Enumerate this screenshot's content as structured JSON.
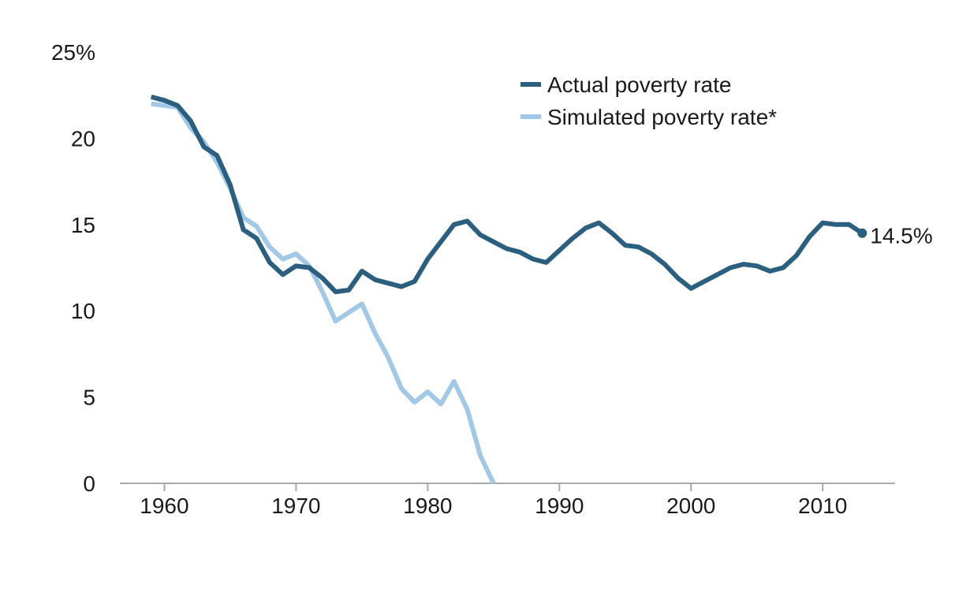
{
  "chart_data": {
    "type": "line",
    "title": "",
    "xlabel": "",
    "ylabel": "",
    "xlim": [
      1956.5,
      2015.5
    ],
    "ylim": [
      0,
      25
    ],
    "x_ticks": [
      {
        "value": 1960,
        "label": "1960"
      },
      {
        "value": 1970,
        "label": "1970"
      },
      {
        "value": 1980,
        "label": "1980"
      },
      {
        "value": 1990,
        "label": "1990"
      },
      {
        "value": 2000,
        "label": "2000"
      },
      {
        "value": 2010,
        "label": "2010"
      }
    ],
    "y_ticks": [
      {
        "value": 0,
        "label": "0"
      },
      {
        "value": 5,
        "label": "5"
      },
      {
        "value": 10,
        "label": "10"
      },
      {
        "value": 15,
        "label": "15"
      },
      {
        "value": 20,
        "label": "20"
      },
      {
        "value": 25,
        "label": "25%"
      }
    ],
    "grid": false,
    "legend_position": "top-right",
    "series": [
      {
        "name": "Actual poverty rate",
        "color": "#2a5f7f",
        "points": [
          [
            1959,
            22.4
          ],
          [
            1960,
            22.2
          ],
          [
            1961,
            21.9
          ],
          [
            1962,
            21.0
          ],
          [
            1963,
            19.5
          ],
          [
            1964,
            19.0
          ],
          [
            1965,
            17.3
          ],
          [
            1966,
            14.7
          ],
          [
            1967,
            14.2
          ],
          [
            1968,
            12.8
          ],
          [
            1969,
            12.1
          ],
          [
            1970,
            12.6
          ],
          [
            1971,
            12.5
          ],
          [
            1972,
            11.9
          ],
          [
            1973,
            11.1
          ],
          [
            1974,
            11.2
          ],
          [
            1975,
            12.3
          ],
          [
            1976,
            11.8
          ],
          [
            1977,
            11.6
          ],
          [
            1978,
            11.4
          ],
          [
            1979,
            11.7
          ],
          [
            1980,
            13.0
          ],
          [
            1981,
            14.0
          ],
          [
            1982,
            15.0
          ],
          [
            1983,
            15.2
          ],
          [
            1984,
            14.4
          ],
          [
            1985,
            14.0
          ],
          [
            1986,
            13.6
          ],
          [
            1987,
            13.4
          ],
          [
            1988,
            13.0
          ],
          [
            1989,
            12.8
          ],
          [
            1990,
            13.5
          ],
          [
            1991,
            14.2
          ],
          [
            1992,
            14.8
          ],
          [
            1993,
            15.1
          ],
          [
            1994,
            14.5
          ],
          [
            1995,
            13.8
          ],
          [
            1996,
            13.7
          ],
          [
            1997,
            13.3
          ],
          [
            1998,
            12.7
          ],
          [
            1999,
            11.9
          ],
          [
            2000,
            11.3
          ],
          [
            2001,
            11.7
          ],
          [
            2002,
            12.1
          ],
          [
            2003,
            12.5
          ],
          [
            2004,
            12.7
          ],
          [
            2005,
            12.6
          ],
          [
            2006,
            12.3
          ],
          [
            2007,
            12.5
          ],
          [
            2008,
            13.2
          ],
          [
            2009,
            14.3
          ],
          [
            2010,
            15.1
          ],
          [
            2011,
            15.0
          ],
          [
            2012,
            15.0
          ],
          [
            2013,
            14.5
          ]
        ]
      },
      {
        "name": "Simulated poverty rate*",
        "color": "#a2c8e8",
        "points": [
          [
            1959,
            22.0
          ],
          [
            1960,
            21.9
          ],
          [
            1961,
            21.8
          ],
          [
            1962,
            20.6
          ],
          [
            1963,
            19.8
          ],
          [
            1964,
            18.6
          ],
          [
            1965,
            17.1
          ],
          [
            1966,
            15.4
          ],
          [
            1967,
            14.9
          ],
          [
            1968,
            13.7
          ],
          [
            1969,
            13.0
          ],
          [
            1970,
            13.3
          ],
          [
            1971,
            12.6
          ],
          [
            1972,
            11.1
          ],
          [
            1973,
            9.4
          ],
          [
            1974,
            9.9
          ],
          [
            1975,
            10.4
          ],
          [
            1976,
            8.7
          ],
          [
            1977,
            7.3
          ],
          [
            1978,
            5.5
          ],
          [
            1979,
            4.7
          ],
          [
            1980,
            5.3
          ],
          [
            1981,
            4.6
          ],
          [
            1982,
            5.9
          ],
          [
            1983,
            4.3
          ],
          [
            1984,
            1.6
          ],
          [
            1985,
            0.0
          ]
        ]
      }
    ],
    "annotations": [
      {
        "series": 0,
        "x": 2013,
        "y": 14.5,
        "text": "14.5%"
      }
    ]
  }
}
